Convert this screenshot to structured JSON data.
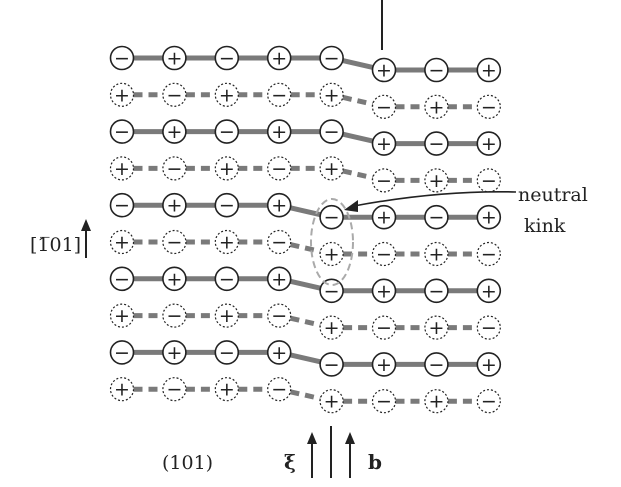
{
  "labels": {
    "kink_line1": "neutral",
    "kink_line2": "kink",
    "direction": "[1̅01]",
    "plane": "(101)",
    "xi": "ξ",
    "b": "b"
  },
  "signs": {
    "plus": "+",
    "minus": "−"
  },
  "colors": {
    "bond": "#7a7a7a",
    "ion_stroke": "#222222",
    "ellipse": "#aaaaaa",
    "text": "#222222"
  },
  "lattice": {
    "pattern": "alternating +/- ions on (101) planes, solid rows = upper plane, dashed rows = lower plane",
    "rows": [
      {
        "plane": "upper",
        "first_sign": "-",
        "step_after": 5
      },
      {
        "plane": "lower",
        "first_sign": "+",
        "step_after": 5
      },
      {
        "plane": "upper",
        "first_sign": "-",
        "step_after": 5
      },
      {
        "plane": "lower",
        "first_sign": "+",
        "step_after": 5
      },
      {
        "plane": "upper",
        "first_sign": "-",
        "step_after": 4
      },
      {
        "plane": "lower",
        "first_sign": "+",
        "step_after": 4
      },
      {
        "plane": "upper",
        "first_sign": "-",
        "step_after": 4
      },
      {
        "plane": "lower",
        "first_sign": "+",
        "step_after": 4
      },
      {
        "plane": "upper",
        "first_sign": "-",
        "step_after": 4
      },
      {
        "plane": "lower",
        "first_sign": "+",
        "step_after": 4
      }
    ]
  }
}
